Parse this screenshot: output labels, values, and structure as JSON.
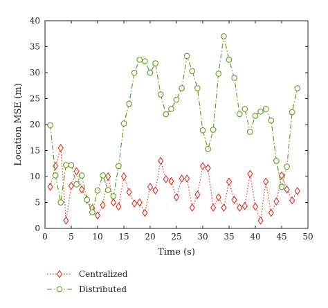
{
  "chart_data": {
    "type": "line",
    "title": "",
    "xlabel": "Time (s)",
    "ylabel": "Location MSE (m)",
    "xlim": [
      0,
      50
    ],
    "ylim": [
      0,
      40
    ],
    "xticks": [
      "0",
      "5",
      "10",
      "15",
      "20",
      "25",
      "30",
      "35",
      "40",
      "45",
      "50"
    ],
    "yticks": [
      "0",
      "5",
      "10",
      "15",
      "20",
      "25",
      "30",
      "35",
      "40"
    ],
    "grid": false,
    "legend_position": "bottom-left",
    "series": [
      {
        "name": "Centralized",
        "color": "#e8331f",
        "marker": "diamond",
        "line_style": "dotted",
        "x": [
          1,
          2,
          3,
          4,
          5,
          6,
          7,
          8,
          9,
          10,
          11,
          12,
          13,
          14,
          15,
          16,
          17,
          18,
          19,
          20,
          21,
          22,
          23,
          24,
          25,
          26,
          27,
          28,
          29,
          30,
          31,
          32,
          33,
          34,
          35,
          36,
          37,
          38,
          39,
          40,
          41,
          42,
          43,
          44,
          45,
          46,
          47,
          48
        ],
        "y": [
          8.0,
          12.0,
          15.5,
          1.5,
          8.2,
          11.0,
          7.5,
          5.5,
          3.9,
          2.5,
          4.5,
          10.0,
          5.0,
          4.2,
          10.0,
          7.0,
          4.8,
          5.0,
          3.0,
          8.0,
          7.3,
          13.0,
          9.5,
          9.1,
          6.0,
          9.6,
          9.6,
          4.0,
          6.5,
          12.0,
          11.6,
          4.0,
          6.0,
          4.0,
          9.0,
          5.5,
          4.0,
          4.3,
          10.5,
          4.2,
          1.5,
          9.0,
          3.0,
          5.2,
          10.2,
          7.5,
          5.4,
          7.2
        ]
      },
      {
        "name": "Distributed",
        "color": "#5ca31e",
        "marker": "circle",
        "line_style": "dashdot",
        "x": [
          1,
          2,
          3,
          4,
          5,
          6,
          7,
          8,
          9,
          10,
          11,
          12,
          13,
          14,
          15,
          16,
          17,
          18,
          19,
          20,
          21,
          22,
          23,
          24,
          25,
          26,
          27,
          28,
          29,
          30,
          31,
          32,
          33,
          34,
          35,
          36,
          37,
          38,
          39,
          40,
          41,
          42,
          43,
          44,
          45,
          46,
          47,
          48
        ],
        "y": [
          19.9,
          10.2,
          5.0,
          12.2,
          12.2,
          8.5,
          10.2,
          5.5,
          3.1,
          7.3,
          10.2,
          7.4,
          6.2,
          12.0,
          20.2,
          24.0,
          30.0,
          32.5,
          32.2,
          30.0,
          31.8,
          25.8,
          22.0,
          23.0,
          24.8,
          27.0,
          33.2,
          30.3,
          27.0,
          18.9,
          15.3,
          19.0,
          29.8,
          37.0,
          32.5,
          29.0,
          22.0,
          23.0,
          18.6,
          21.7,
          22.5,
          23.0,
          20.8,
          13.0,
          8.0,
          11.9,
          22.4,
          27.0
        ]
      }
    ]
  }
}
